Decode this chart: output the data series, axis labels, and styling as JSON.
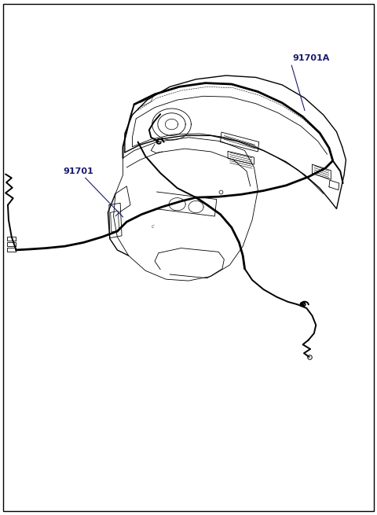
{
  "background_color": "#ffffff",
  "line_color": "#000000",
  "label_color": "#1a1a6e",
  "border_color": "#000000",
  "label_91701A": "91701A",
  "label_91701": "91701",
  "figsize": [
    4.8,
    6.55
  ],
  "dpi": 100
}
